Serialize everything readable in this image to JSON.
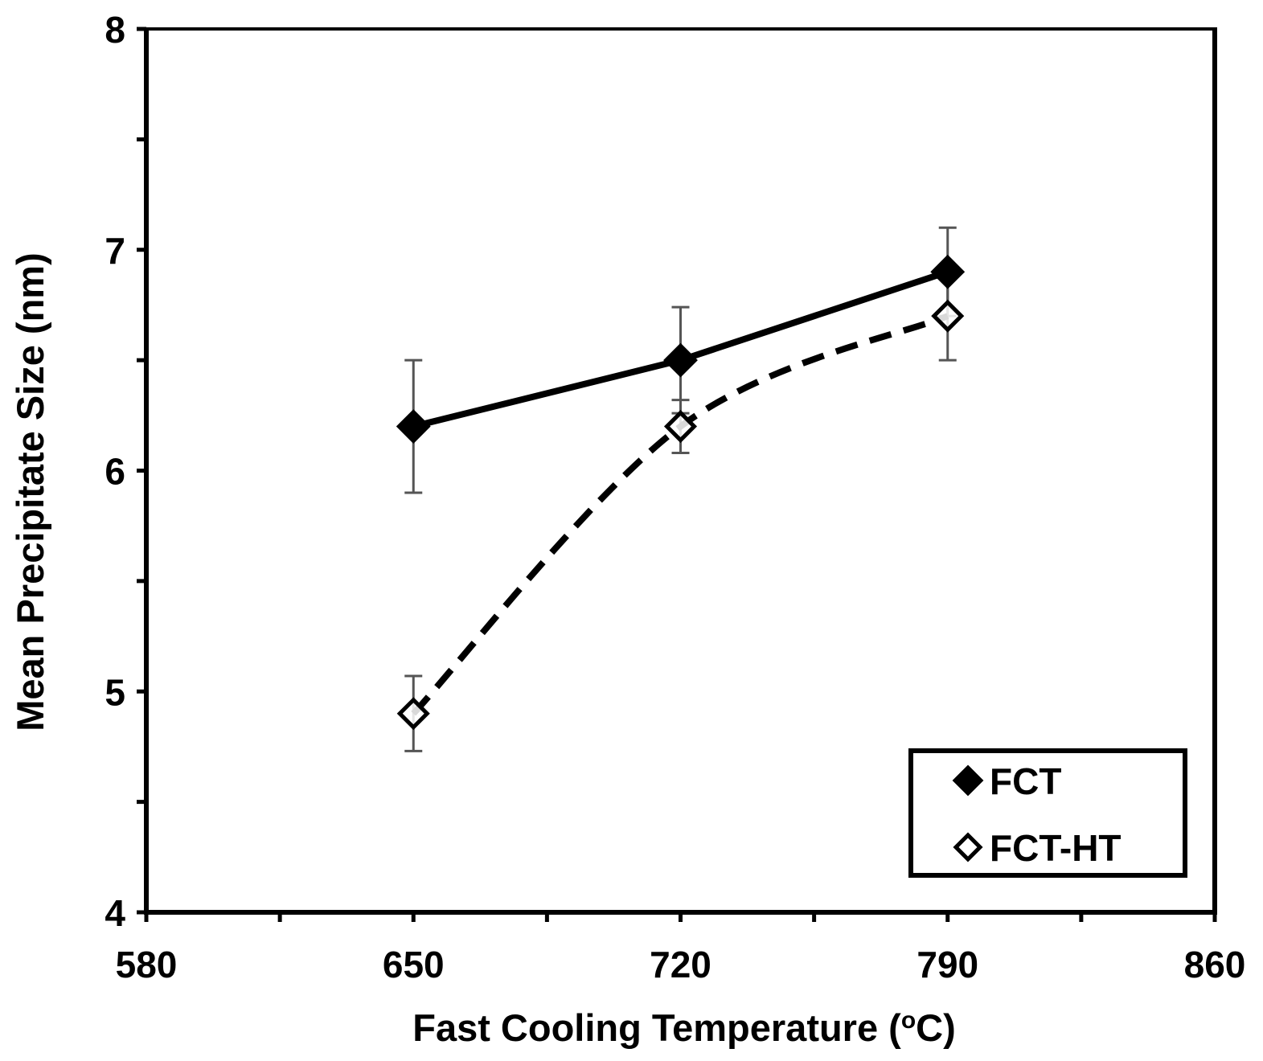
{
  "chart_data": {
    "type": "line",
    "title": "",
    "xlabel": "Fast Cooling Temperature (",
    "xlabel_sup": "o",
    "xlabel_tail": "C)",
    "ylabel": "Mean Precipitate Size (nm)",
    "xlim": [
      580,
      860
    ],
    "ylim": [
      4,
      8
    ],
    "x_ticks": [
      580,
      650,
      720,
      790,
      860
    ],
    "x_ticks_minor": [
      615,
      685,
      755,
      825
    ],
    "y_ticks": [
      4,
      5,
      6,
      7,
      8
    ],
    "y_ticks_minor": [
      4.5,
      5.5,
      6.5,
      7.5
    ],
    "x_tick_labels": [
      "580",
      "650",
      "720",
      "790",
      "860"
    ],
    "y_tick_labels": [
      "4",
      "5",
      "6",
      "7",
      "8"
    ],
    "grid": false,
    "legend_position": "bottom-right",
    "series": [
      {
        "name": "FCT",
        "marker": "filled-diamond",
        "line": "solid",
        "color": "#000000",
        "x": [
          650,
          720,
          790
        ],
        "y": [
          6.2,
          6.5,
          6.9
        ],
        "err": [
          0.3,
          0.24,
          0.2
        ]
      },
      {
        "name": "FCT-HT",
        "marker": "open-diamond",
        "line": "dashed-smooth",
        "color": "#000000",
        "x": [
          650,
          720,
          790
        ],
        "y": [
          4.9,
          6.2,
          6.7
        ],
        "err": [
          0.17,
          0.12,
          0.2
        ]
      }
    ]
  },
  "colors": {
    "axis": "#000000",
    "error_bar": "#555555",
    "background": "#ffffff"
  }
}
